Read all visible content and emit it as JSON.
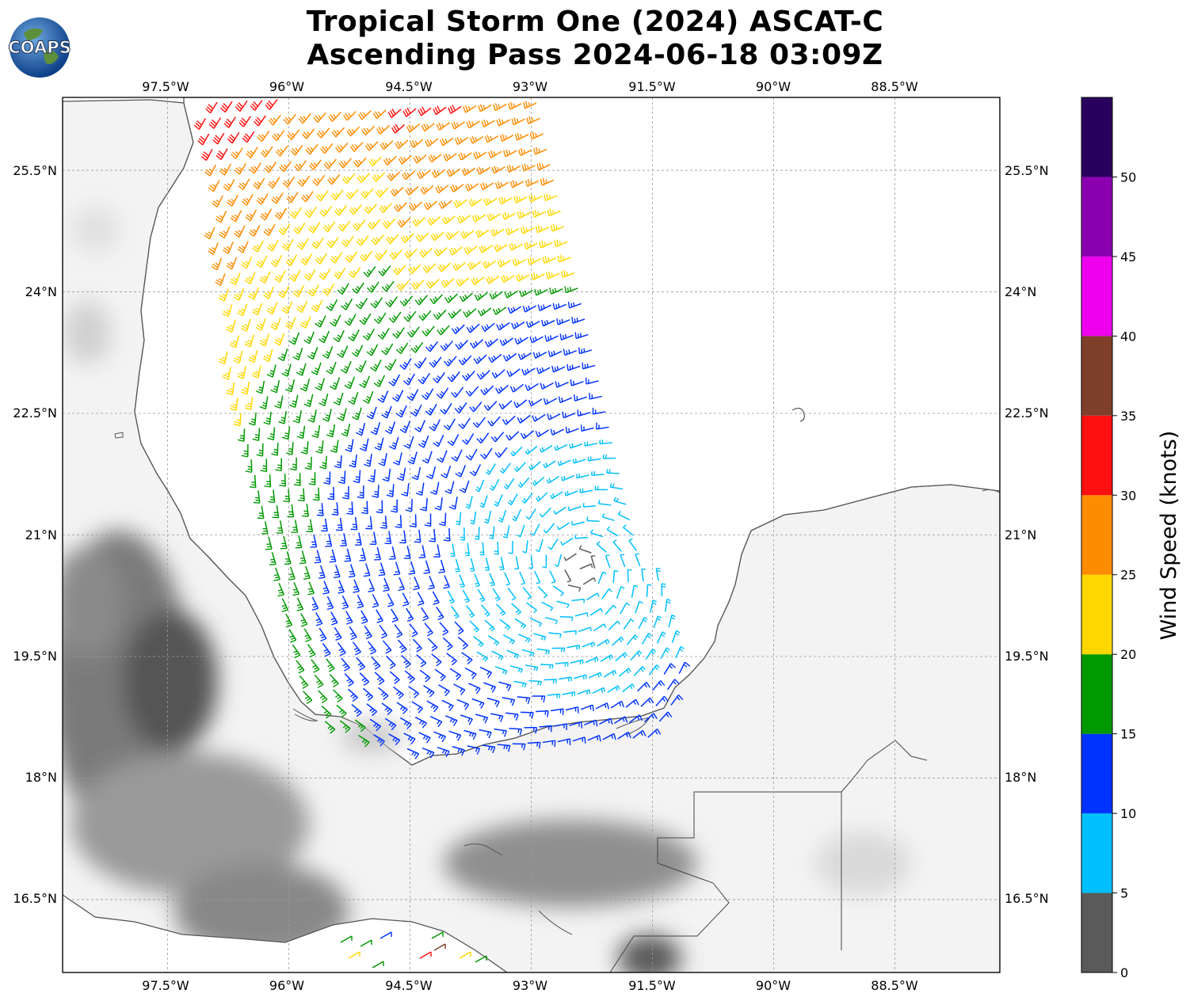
{
  "header": {
    "title_line1": "Tropical Storm One (2024) ASCAT-C",
    "title_line2": "Ascending Pass 2024-06-18 03:09Z",
    "logo_text": "COAPS"
  },
  "map": {
    "lon_ticks": [
      "97.5°W",
      "96°W",
      "94.5°W",
      "93°W",
      "91.5°W",
      "90°W",
      "88.5°W"
    ],
    "lat_ticks": [
      "25.5°N",
      "24°N",
      "22.5°N",
      "21°N",
      "19.5°N",
      "18°N",
      "16.5°N"
    ],
    "lon_range": [
      -98.8,
      -87.2
    ],
    "lat_range": [
      15.6,
      26.4
    ],
    "gridlines": true,
    "land_fill": "terrain-grayscale",
    "ocean_fill": "#ffffff",
    "coastline_color": "#555555"
  },
  "colorbar": {
    "label": "Wind Speed (knots)",
    "ticks": [
      "0",
      "5",
      "10",
      "15",
      "20",
      "25",
      "30",
      "35",
      "40",
      "45",
      "50"
    ],
    "bins": [
      {
        "min": 0,
        "max": 5,
        "color": "#5a5a5a"
      },
      {
        "min": 5,
        "max": 10,
        "color": "#00bfff"
      },
      {
        "min": 10,
        "max": 15,
        "color": "#0033ff"
      },
      {
        "min": 15,
        "max": 20,
        "color": "#009900"
      },
      {
        "min": 20,
        "max": 25,
        "color": "#ffd700"
      },
      {
        "min": 25,
        "max": 30,
        "color": "#ff8c00"
      },
      {
        "min": 30,
        "max": 35,
        "color": "#ff1010"
      },
      {
        "min": 35,
        "max": 40,
        "color": "#7f3f2a"
      },
      {
        "min": 40,
        "max": 45,
        "color": "#ee00ee"
      },
      {
        "min": 45,
        "max": 50,
        "color": "#8a00b0"
      },
      {
        "min": 50,
        "max": 55,
        "color": "#2a005f"
      }
    ]
  },
  "storm_center": {
    "lon": -92.4,
    "lat": 20.6
  }
}
